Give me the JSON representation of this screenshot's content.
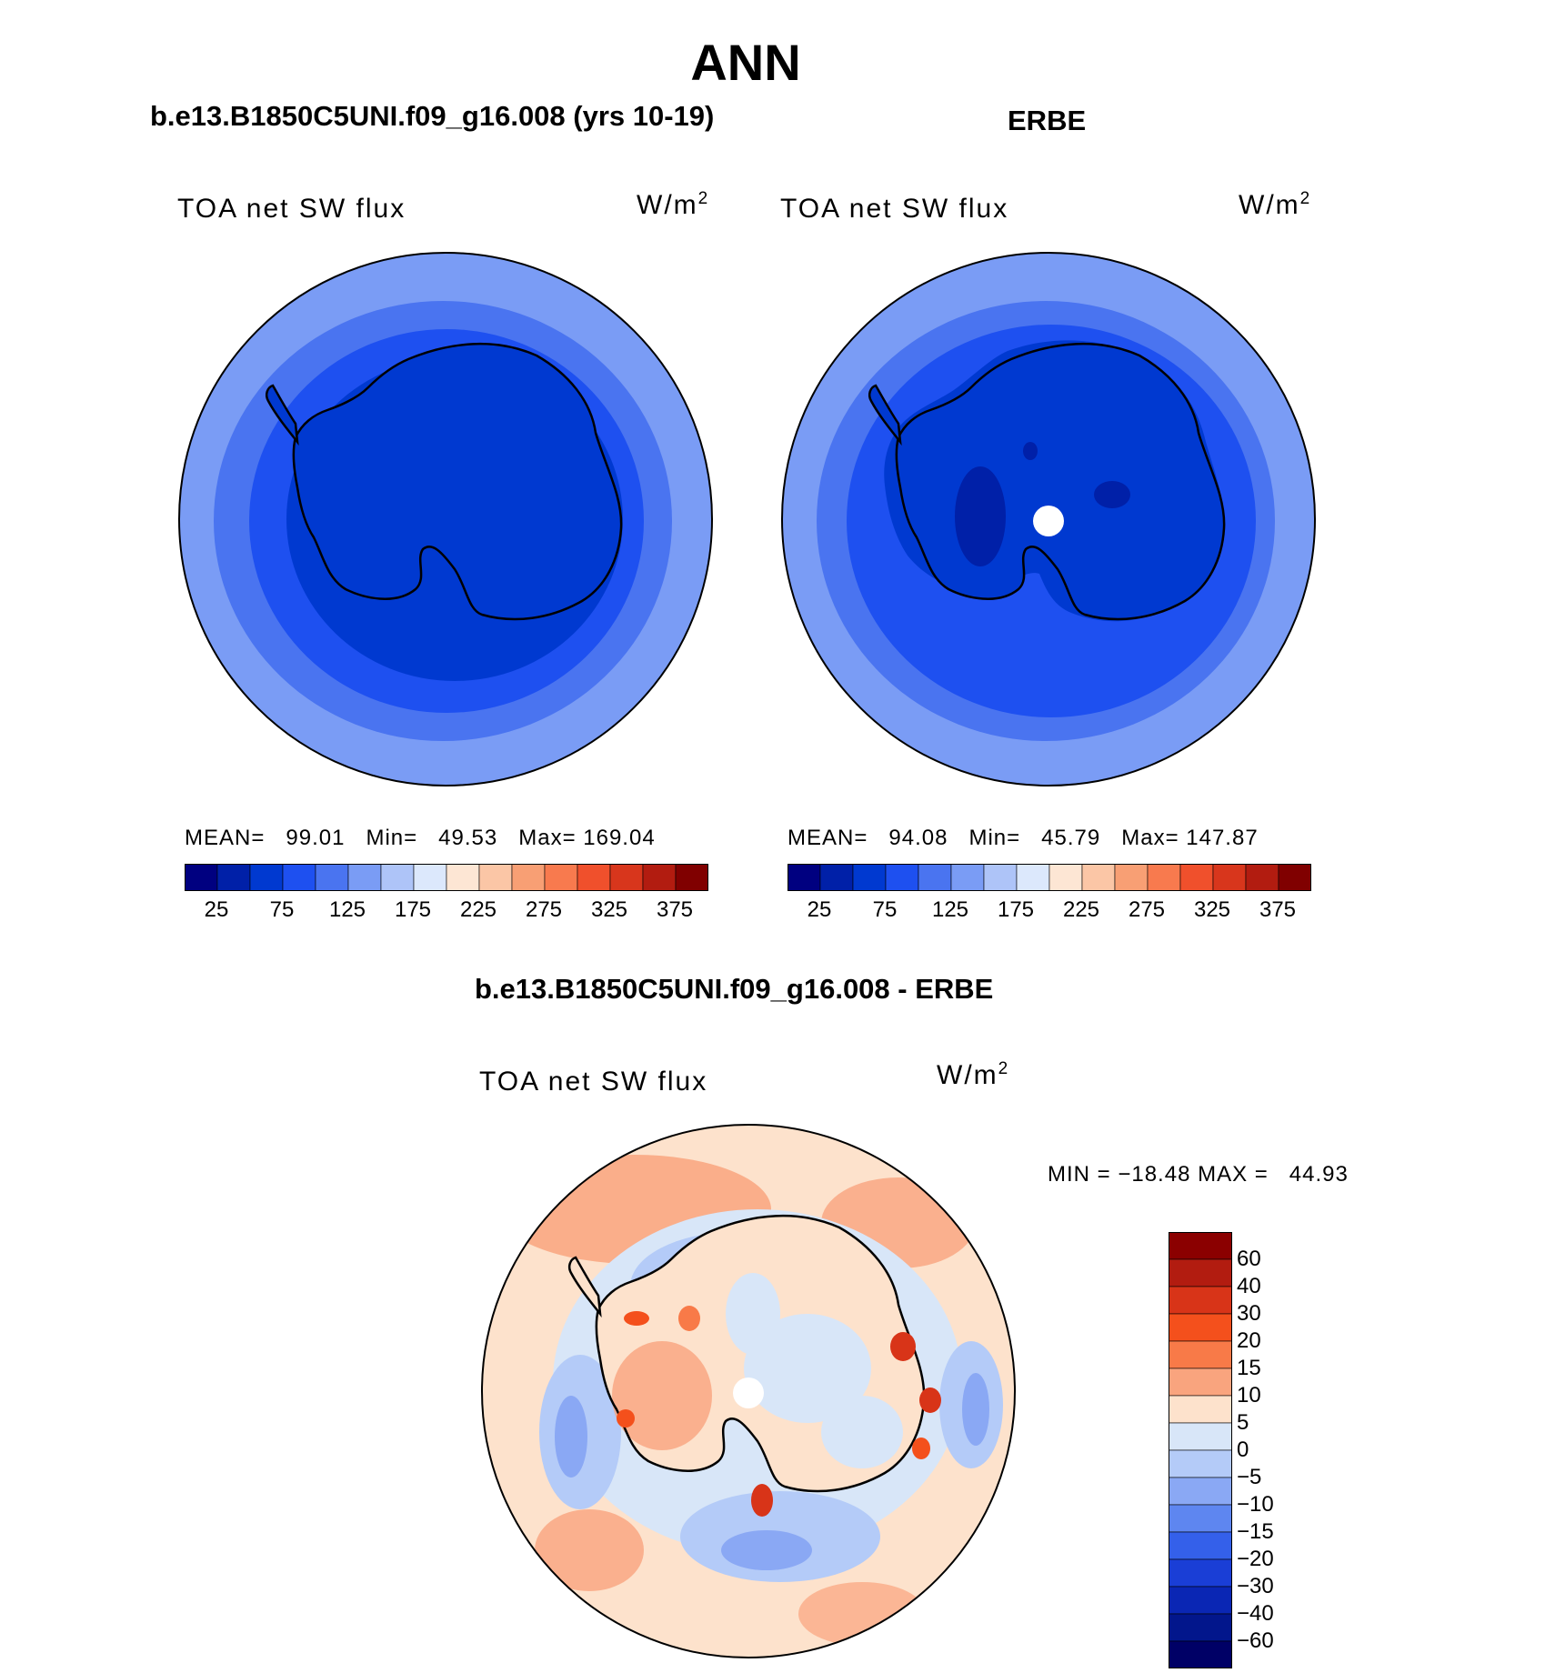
{
  "title": "ANN",
  "panels": [
    {
      "case": "b.e13.B1850C5UNI.f09_g16.008 (yrs 10-19)",
      "variable": "TOA net SW flux",
      "units": "W/m",
      "units_exp": "2",
      "stats": {
        "mean_label": "MEAN=",
        "mean": "99.01",
        "min_label": "Min=",
        "min": "49.53",
        "max_label": "Max=",
        "max": "169.04"
      },
      "has_missing_pole": false
    },
    {
      "case": "ERBE",
      "variable": "TOA net SW flux",
      "units": "W/m",
      "units_exp": "2",
      "stats": {
        "mean_label": "MEAN=",
        "mean": "94.08",
        "min_label": "Min=",
        "min": "45.79",
        "max_label": "Max=",
        "max": "147.87"
      },
      "has_missing_pole": true
    }
  ],
  "shared_colorbar": {
    "colors": [
      "#000080",
      "#0020a8",
      "#0039d0",
      "#1e50f0",
      "#4a74f0",
      "#7a9cf5",
      "#aec4f8",
      "#dce8fc",
      "#fde6d4",
      "#fbc6a6",
      "#f89f74",
      "#f87a4e",
      "#f0502c",
      "#d8361c",
      "#b21c10",
      "#800000"
    ],
    "labels": [
      "25",
      "75",
      "125",
      "175",
      "225",
      "275",
      "325",
      "375"
    ]
  },
  "difference": {
    "title": "b.e13.B1850C5UNI.f09_g16.008 - ERBE",
    "variable": "TOA net SW flux",
    "units": "W/m",
    "units_exp": "2",
    "minmax": "MIN = −18.48 MAX =   44.93",
    "colorbar": {
      "colors_top_to_bottom": [
        "#8b0000",
        "#b21c10",
        "#d83418",
        "#f4501c",
        "#f87a48",
        "#f9a47e",
        "#fde2cc",
        "#d8e6f8",
        "#b4cbf8",
        "#8aa8f4",
        "#5e86f0",
        "#3460ea",
        "#1a3ed6",
        "#0a26b4",
        "#02168c",
        "#000066"
      ],
      "labels_top_to_bottom": [
        "60",
        "40",
        "30",
        "20",
        "15",
        "10",
        "5",
        "0",
        "−5",
        "−10",
        "−15",
        "−20",
        "−30",
        "−40",
        "−60"
      ]
    }
  }
}
